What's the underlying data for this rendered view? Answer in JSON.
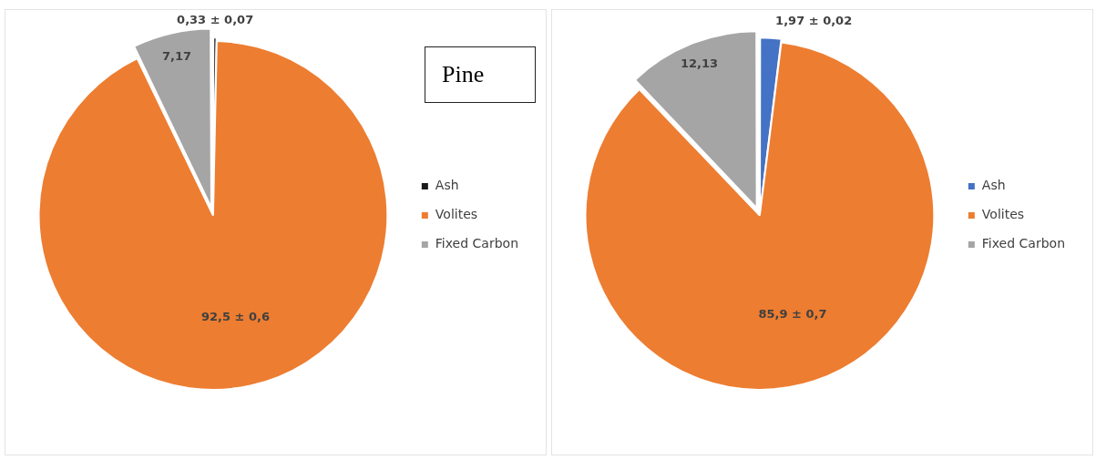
{
  "chart_data": [
    {
      "type": "pie",
      "title": "Pine",
      "categories": [
        "Ash",
        "Volites",
        "Fixed Carbon"
      ],
      "values": [
        0.33,
        92.5,
        7.17
      ],
      "colors": [
        "#1a1a1a",
        "#ed7d31",
        "#a5a5a5"
      ],
      "value_labels": [
        "0,33 ± 0,07",
        "92,5 ± 0,6",
        "7,17"
      ],
      "legend": "right"
    },
    {
      "type": "pie",
      "categories": [
        "Ash",
        "Volites",
        "Fixed Carbon"
      ],
      "values": [
        1.97,
        85.9,
        12.13
      ],
      "colors": [
        "#4472c4",
        "#ed7d31",
        "#a5a5a5"
      ],
      "value_labels": [
        "1,97 ± 0,02",
        "85,9 ± 0,7",
        "12,13"
      ],
      "legend": "right"
    }
  ]
}
